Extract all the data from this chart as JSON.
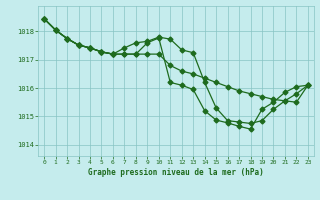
{
  "title": "Graphe pression niveau de la mer (hPa)",
  "background_color": "#c5eced",
  "grid_color": "#88c4c4",
  "line_color": "#1e6b1e",
  "xlim": [
    -0.5,
    23.5
  ],
  "ylim": [
    1013.6,
    1018.9
  ],
  "yticks": [
    1014,
    1015,
    1016,
    1017,
    1018
  ],
  "xticks": [
    0,
    1,
    2,
    3,
    4,
    5,
    6,
    7,
    8,
    9,
    10,
    11,
    12,
    13,
    14,
    15,
    16,
    17,
    18,
    19,
    20,
    21,
    22,
    23
  ],
  "line1_x": [
    0,
    1,
    2,
    3,
    4,
    5,
    6,
    7,
    8,
    9,
    10,
    11,
    12,
    13,
    14,
    15,
    16,
    17,
    18,
    19,
    20,
    21,
    22,
    23
  ],
  "line1_y": [
    1018.45,
    1018.05,
    1017.75,
    1017.52,
    1017.42,
    1017.28,
    1017.2,
    1017.2,
    1017.2,
    1017.2,
    1017.2,
    1016.8,
    1016.6,
    1016.5,
    1016.35,
    1016.2,
    1016.05,
    1015.9,
    1015.8,
    1015.7,
    1015.6,
    1015.55,
    1015.5,
    1016.1
  ],
  "line2_x": [
    0,
    1,
    2,
    3,
    4,
    5,
    6,
    7,
    8,
    9,
    10,
    11,
    12,
    13,
    14,
    15,
    16,
    17,
    18,
    19,
    20,
    21,
    22,
    23
  ],
  "line2_y": [
    1018.45,
    1018.05,
    1017.75,
    1017.52,
    1017.42,
    1017.28,
    1017.2,
    1017.42,
    1017.6,
    1017.65,
    1017.8,
    1017.73,
    1017.35,
    1017.25,
    1016.2,
    1015.3,
    1014.85,
    1014.8,
    1014.75,
    1014.85,
    1015.25,
    1015.55,
    1015.8,
    1016.1
  ],
  "line3_x": [
    0,
    1,
    2,
    3,
    4,
    5,
    6,
    7,
    8,
    9,
    10,
    11,
    12,
    13,
    14,
    15,
    16,
    17,
    18,
    19,
    20,
    21,
    22,
    23
  ],
  "line3_y": [
    1018.45,
    1018.05,
    1017.75,
    1017.52,
    1017.42,
    1017.28,
    1017.2,
    1017.2,
    1017.2,
    1017.6,
    1017.77,
    1016.2,
    1016.1,
    1015.95,
    1015.2,
    1014.87,
    1014.77,
    1014.65,
    1014.55,
    1015.25,
    1015.5,
    1015.85,
    1016.05,
    1016.1
  ],
  "line4_x": [
    0,
    1,
    2,
    3,
    4,
    5,
    6
  ],
  "line4_y": [
    1018.45,
    1018.05,
    1017.75,
    1017.52,
    1017.42,
    1017.28,
    1017.2
  ]
}
